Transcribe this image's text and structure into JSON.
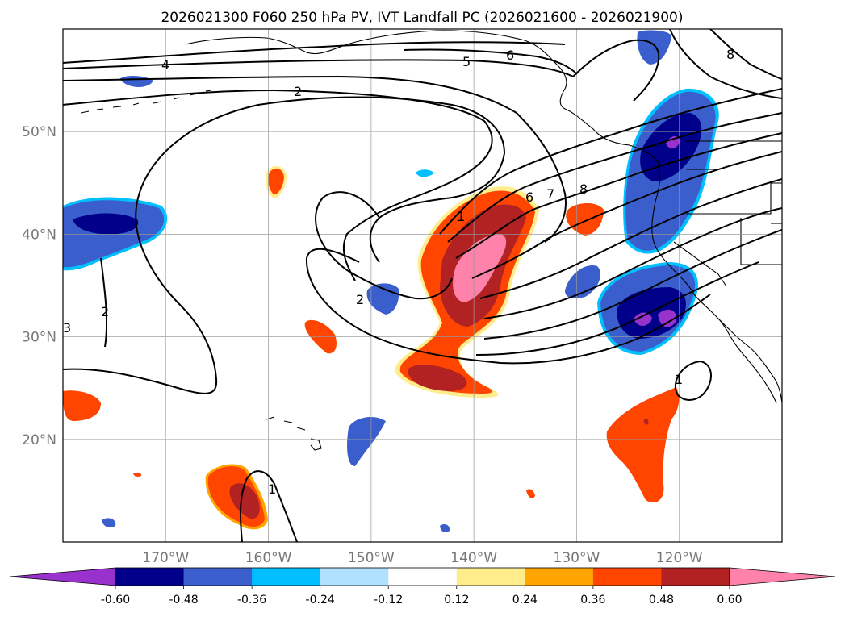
{
  "chart_data": {
    "type": "map-contour",
    "title": "2026021300 F060 250 hPa PV, IVT Landfall PC (2026021600 - 2026021900)",
    "map": {
      "lon_ticks": [
        "170°W",
        "160°W",
        "150°W",
        "140°W",
        "130°W",
        "120°W"
      ],
      "lat_ticks": [
        "20°N",
        "30°N",
        "40°N",
        "50°N"
      ],
      "lon_values": [
        -170,
        -160,
        -150,
        -140,
        -130,
        -120
      ],
      "lat_values": [
        20,
        30,
        40,
        50
      ],
      "extent": {
        "lon_min": -180,
        "lon_max": -110,
        "lat_min": 10,
        "lat_max": 60
      },
      "grid": true
    },
    "pv_contour_labels": [
      "4",
      "5",
      "6",
      "8",
      "2",
      "1",
      "6",
      "7",
      "8",
      "2",
      "3",
      "1",
      "1",
      "2"
    ],
    "shaded_field": "IVT Landfall PC",
    "colorbar": {
      "tick_labels": [
        "-0.60",
        "-0.48",
        "-0.36",
        "-0.24",
        "-0.12",
        "0.12",
        "0.24",
        "0.36",
        "0.48",
        "0.60"
      ],
      "bin_edges": [
        -0.72,
        -0.6,
        -0.48,
        -0.36,
        -0.24,
        -0.12,
        0.12,
        0.24,
        0.36,
        0.48,
        0.6,
        0.72
      ],
      "colors": [
        "#9932cc",
        "#00008b",
        "#3a5fcd",
        "#00bfff",
        "#b0e2ff",
        "#ffffff",
        "#ffec8b",
        "#ffa500",
        "#ff4500",
        "#b22222",
        "#ff82ab"
      ],
      "extend": "both"
    }
  }
}
